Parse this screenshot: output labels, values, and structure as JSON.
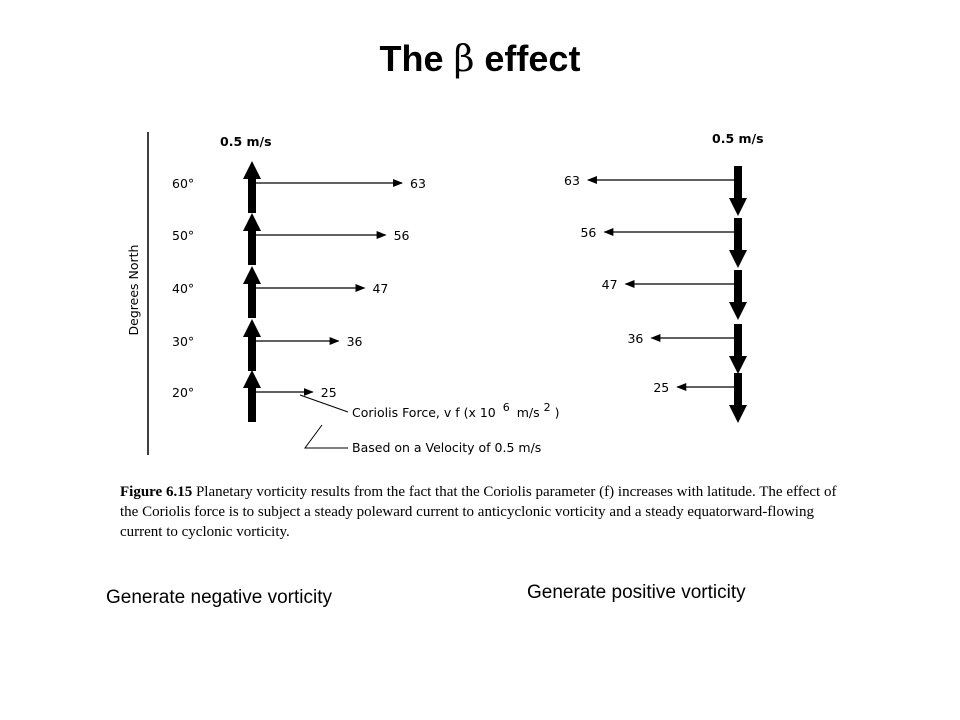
{
  "title": {
    "prefix": "The",
    "symbol": "β",
    "suffix": "effect"
  },
  "axis_label": "Degrees North",
  "speed_label_left": "0.5 m/s",
  "speed_label_right": "0.5 m/s",
  "rows": [
    {
      "latitude": "60°",
      "force": "63"
    },
    {
      "latitude": "50°",
      "force": "56"
    },
    {
      "latitude": "40°",
      "force": "47"
    },
    {
      "latitude": "30°",
      "force": "36"
    },
    {
      "latitude": "20°",
      "force": "25"
    }
  ],
  "legend": {
    "line1_text": "Coriolis Force, v f (x 10",
    "line1_exp": "6",
    "line1_unit": "m/s",
    "line1_unit_exp": "2",
    "line1_close": ")",
    "line2": "Based on a Velocity of 0.5 m/s"
  },
  "caption": {
    "label": "Figure 6.15",
    "text": "Planetary vorticity results from the fact that the Coriolis parameter (f) increases with latitude. The effect of the Coriolis force is to subject a steady poleward current to anticyclonic vorticity and a steady equatorward-flowing current to cyclonic vorticity."
  },
  "note_left": "Generate negative vorticity",
  "note_right": "Generate positive vorticity"
}
